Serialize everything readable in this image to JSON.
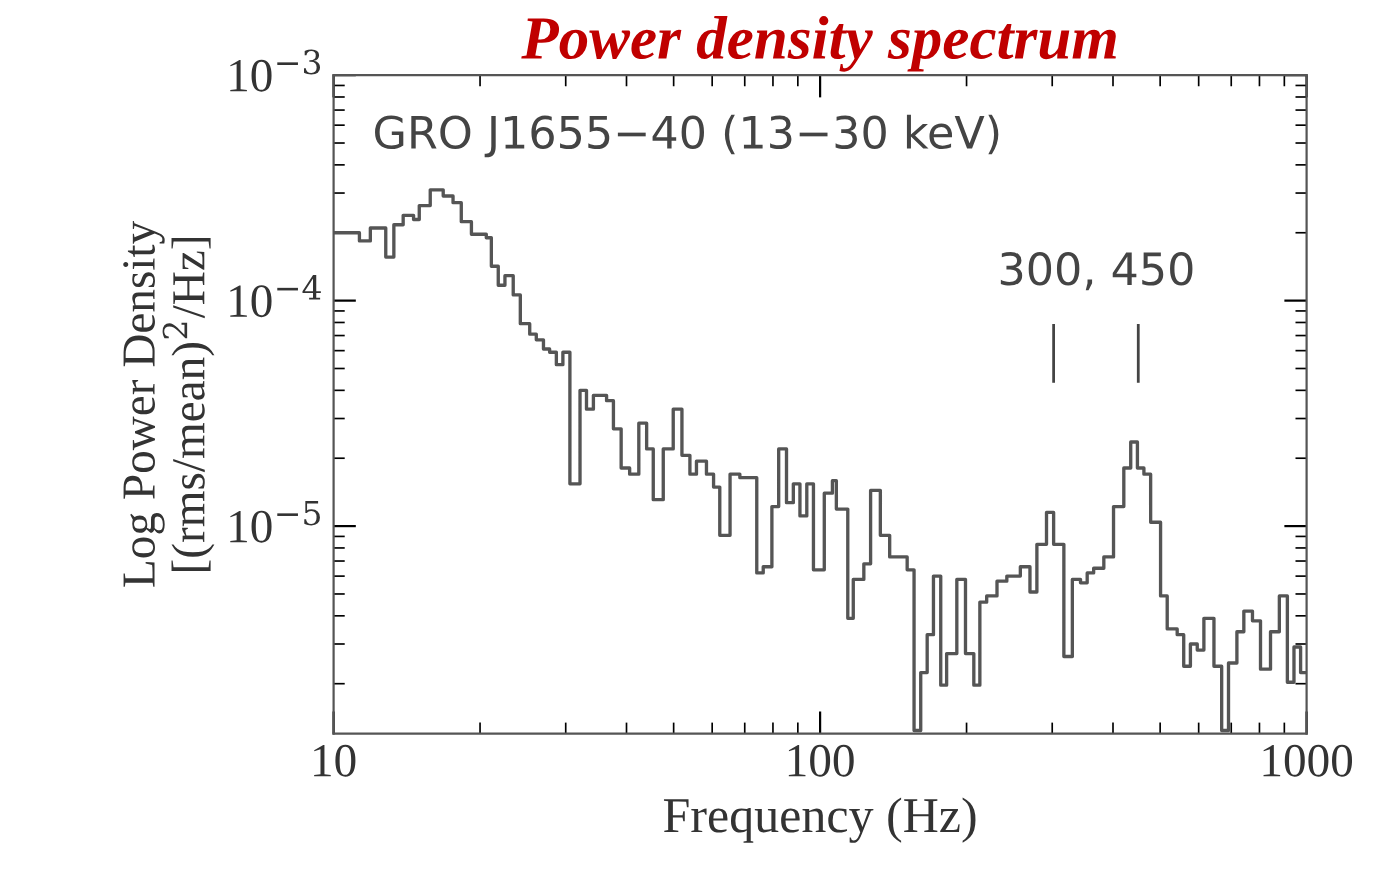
{
  "chart_data": {
    "type": "step",
    "title": "Power density spectrum",
    "xlabel": "Frequency (Hz)",
    "ylabel": "Log Power Density\n[(rms/mean)$^{2}$/Hz]",
    "log": "xy",
    "xlim": [
      10,
      1000
    ],
    "ylim": [
      1.2e-06,
      0.001
    ],
    "xticks": [
      10,
      100,
      1000
    ],
    "yticks": [
      {
        "value": 0.001,
        "label": "10$^{−3}$"
      },
      {
        "value": 0.0001,
        "label": "10$^{−4}$"
      },
      {
        "value": 1e-05,
        "label": "10$^{−5}$"
      }
    ],
    "grid": false,
    "marker": "none",
    "line_style": "solid",
    "annotations": [
      "GRO J1655−40 (13−30 keV)",
      "300, 450"
    ],
    "series": [
      {
        "color": "#555555",
        "x": [
          10.0,
          11.3,
          11.9,
          12.8,
          13.3,
          13.9,
          14.6,
          15.0,
          15.8,
          16.8,
          17.6,
          18.3,
          19.2,
          20.6,
          21.1,
          21.8,
          22.5,
          23.4,
          24.2,
          25.3,
          26.1,
          27.0,
          27.8,
          28.7,
          29.6,
          30.6,
          32.1,
          33.1,
          34.2,
          36.4,
          37.6,
          39.0,
          40.6,
          42.4,
          44.0,
          45.4,
          47.6,
          49.9,
          52.0,
          54.0,
          55.7,
          58.4,
          60.4,
          62.2,
          65.3,
          68.4,
          74.1,
          76.4,
          79.6,
          82.2,
          85.3,
          88.1,
          90.9,
          93.9,
          96.9,
          102,
          106,
          108,
          114,
          117,
          123,
          127,
          133,
          139,
          151,
          156,
          161,
          166,
          171,
          177,
          182,
          191,
          199,
          207,
          213,
          220,
          231,
          242,
          258,
          270,
          279,
          292,
          302,
          317,
          330,
          343,
          354,
          365,
          383,
          401,
          421,
          435,
          449,
          463,
          478,
          501,
          517,
          542,
          559,
          577,
          596,
          615,
          645,
          669,
          691,
          719,
          743,
          774,
          804,
          843,
          879,
          913,
          942,
          972,
          1000
        ],
        "values": [
          0.0002,
          0.000184,
          0.00021,
          0.000156,
          0.000217,
          0.000239,
          0.000229,
          0.000264,
          0.00031,
          0.000291,
          0.000272,
          0.000224,
          0.000197,
          0.00019,
          0.000142,
          0.000117,
          0.000129,
          0.000106,
          7.9e-05,
          7.1e-05,
          6.7e-05,
          6.1e-05,
          5.9e-05,
          5.2e-05,
          5.9e-05,
          1.54e-05,
          4e-05,
          3.3e-05,
          3.8e-05,
          3.6e-05,
          2.7e-05,
          1.81e-05,
          1.7e-05,
          2.86e-05,
          2.2e-05,
          1.31e-05,
          2.2e-05,
          3.3e-05,
          2.06e-05,
          1.7e-05,
          1.94e-05,
          1.7e-05,
          1.49e-05,
          9.1e-06,
          1.7e-05,
          1.64e-05,
          6.2e-06,
          6.6e-06,
          1.22e-05,
          2.2e-05,
          1.27e-05,
          1.54e-05,
          1.11e-05,
          1.54e-05,
          6.4e-06,
          1.4e-05,
          1.59e-05,
          1.19e-05,
          3.9e-06,
          5.8e-06,
          6.8e-06,
          1.44e-05,
          9.1e-06,
          7.3e-06,
          6.4e-06,
          1.24e-06,
          2.24e-06,
          3.3e-06,
          6e-06,
          1.97e-06,
          2.72e-06,
          5.8e-06,
          2.72e-06,
          1.97e-06,
          4.6e-06,
          4.9e-06,
          5.7e-06,
          6e-06,
          6.6e-06,
          5.1e-06,
          8.3e-06,
          1.15e-05,
          8.3e-06,
          2.64e-06,
          5.8e-06,
          5.6e-06,
          6.2e-06,
          6.5e-06,
          7.3e-06,
          1.22e-05,
          1.81e-05,
          2.36e-05,
          1.81e-05,
          1.7e-05,
          1.04e-05,
          4.9e-06,
          3.5e-06,
          3.3e-06,
          2.39e-06,
          3e-06,
          2.82e-06,
          3.9e-06,
          2.39e-06,
          1.24e-06,
          2.47e-06,
          3.4e-06,
          4.2e-06,
          3.8e-06,
          2.32e-06,
          3.4e-06,
          4.9e-06,
          2.03e-06,
          2.91e-06,
          2.24e-06,
          2.24e-06
        ]
      }
    ]
  }
}
